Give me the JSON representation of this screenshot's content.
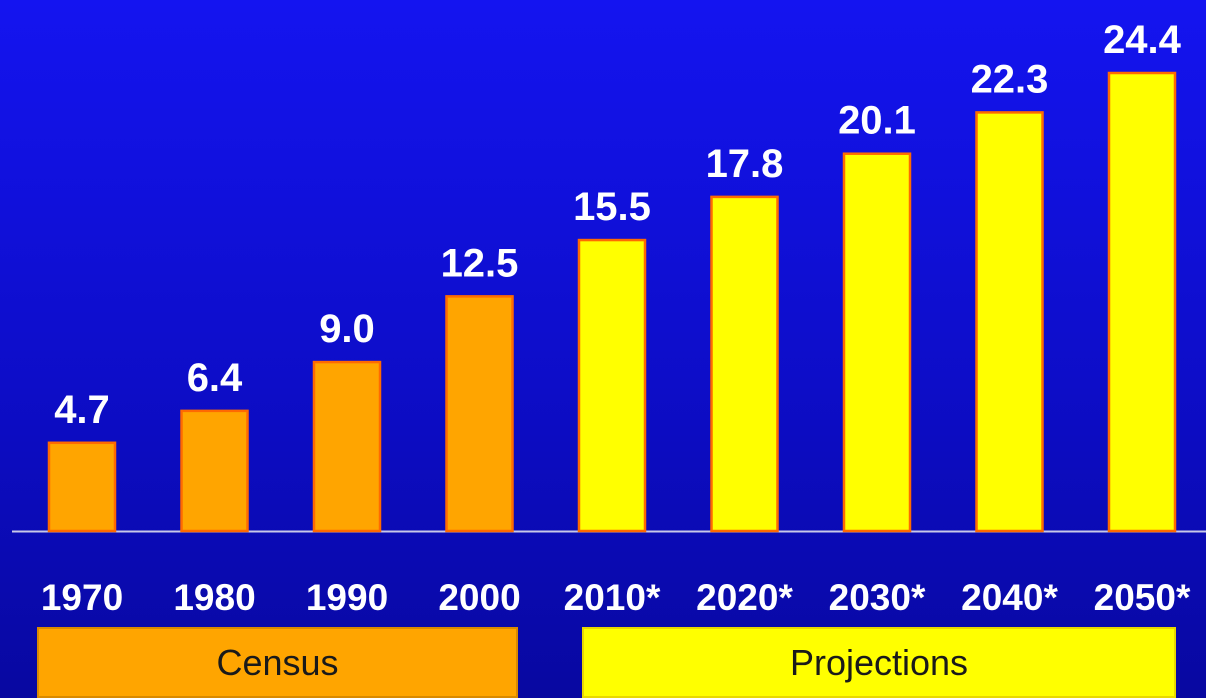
{
  "chart_data": {
    "type": "bar",
    "categories": [
      "1970",
      "1980",
      "1990",
      "2000",
      "2010*",
      "2020*",
      "2030*",
      "2040*",
      "2050*"
    ],
    "values": [
      4.7,
      6.4,
      9.0,
      12.5,
      15.5,
      17.8,
      20.1,
      22.3,
      24.4
    ],
    "value_labels": [
      "4.7",
      "6.4",
      "9.0",
      "12.5",
      "15.5",
      "17.8",
      "20.1",
      "22.3",
      "24.4"
    ],
    "groups": [
      "Census",
      "Census",
      "Census",
      "Census",
      "Projections",
      "Projections",
      "Projections",
      "Projections",
      "Projections"
    ],
    "ylim": [
      0,
      24.4
    ],
    "grid": false,
    "legend": [
      {
        "name": "Census",
        "color": "#ffa500"
      },
      {
        "name": "Projections",
        "color": "#ffff00"
      }
    ],
    "legend_placement": "bottom"
  },
  "colors": {
    "census": "#ffa500",
    "projections": "#ffff00",
    "bar_outline": "#ff6a00",
    "background": "#1010e0",
    "text": "#ffffff"
  },
  "legend": {
    "census_label": "Census",
    "projections_label": "Projections"
  }
}
